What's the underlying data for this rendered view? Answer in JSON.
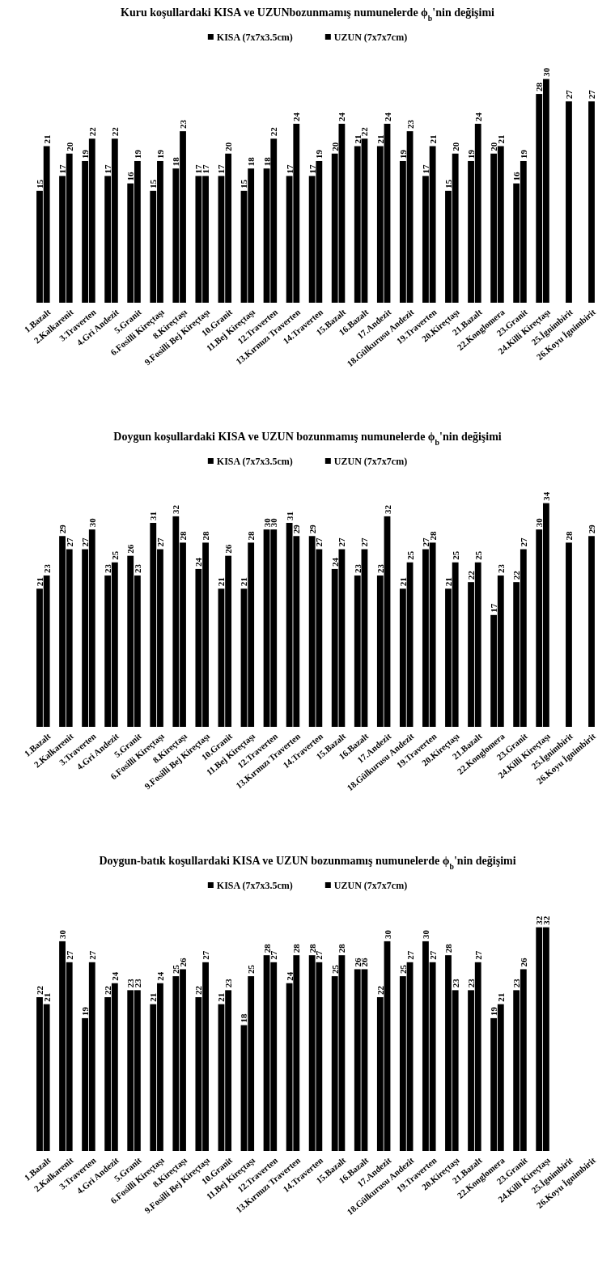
{
  "chart_data": [
    {
      "type": "bar",
      "title": "Kuru koşullardaki KISA ve UZUNbozunmamış numunelerde ϕ$_{b}$'nin değişimi",
      "categories": [
        "1.Bazalt",
        "2.Kalkarenit",
        "3.Traverten",
        "4.Gri Andezit",
        "5.Granit",
        "6.Fosilli Kireçtaşı",
        "8.Kireçtaşı",
        "9.Fosilli Bej Kireçtaşı",
        "10.Granit",
        "11.Bej Kireçtaşı",
        "12.Traverten",
        "13.Kırmızı Traverten",
        "14.Traverten",
        "15.Bazalt",
        "16.Bazalt",
        "17.Andezit",
        "18.Gülkurusu Andezit",
        "19.Traverten",
        "20.Kireçtaşı",
        "21.Bazalt",
        "22.Konglomera",
        "23.Granit",
        "24.Killi Kireçtaşı",
        "25.İgnimbirit",
        "26.Koyu İgnimbirit"
      ],
      "series": [
        {
          "name": "KISA (7x7x3.5cm)",
          "color": "#000000",
          "values": [
            15,
            17,
            19,
            17,
            16,
            15,
            18,
            17,
            17,
            15,
            18,
            17,
            17,
            20,
            21,
            21,
            19,
            17,
            15,
            19,
            20,
            16,
            28,
            null,
            null
          ]
        },
        {
          "name": "UZUN (7x7x7cm)",
          "color": "#000000",
          "values": [
            21,
            20,
            22,
            22,
            19,
            19,
            23,
            17,
            20,
            18,
            22,
            24,
            19,
            24,
            22,
            24,
            23,
            21,
            20,
            24,
            21,
            19,
            30,
            27,
            27
          ]
        }
      ],
      "tick_labels": "x",
      "data_labels": true,
      "legend": "top"
    },
    {
      "type": "bar",
      "title": "Doygun koşullardaki KISA ve UZUN bozunmamış numunelerde ϕ$_{b}$'nin değişimi",
      "categories": [
        "1.Bazalt",
        "2.Kalkarenit",
        "3.Traverten",
        "4.Gri Andezit",
        "5.Granit",
        "6.Fosilli Kireçtaşı",
        "8.Kireçtaşı",
        "9.Fosilli Bej Kireçtaşı",
        "10.Granit",
        "11.Bej Kireçtaşı",
        "12.Traverten",
        "13.Kırmızı Traverten",
        "14.Traverten",
        "15.Bazalt",
        "16.Bazalt",
        "17.Andezit",
        "18.Gülkurusu Andezit",
        "19.Traverten",
        "20.Kireçtaşı",
        "21.Bazalt",
        "22.Konglomera",
        "23.Granit",
        "24.Killi Kireçtaşı",
        "25.İgnimbirit",
        "26.Koyu İgnimbirit"
      ],
      "series": [
        {
          "name": "KISA (7x7x3.5cm)",
          "color": "#000000",
          "values": [
            21,
            29,
            27,
            23,
            26,
            31,
            32,
            24,
            21,
            21,
            30,
            31,
            29,
            24,
            23,
            23,
            21,
            27,
            21,
            22,
            17,
            22,
            30,
            null,
            null
          ]
        },
        {
          "name": "UZUN (7x7x7cm)",
          "color": "#000000",
          "values": [
            23,
            27,
            30,
            25,
            23,
            27,
            28,
            28,
            26,
            28,
            30,
            29,
            27,
            27,
            27,
            32,
            25,
            28,
            25,
            25,
            23,
            27,
            34,
            28,
            29
          ]
        }
      ],
      "tick_labels": "x",
      "data_labels": true,
      "legend": "top"
    },
    {
      "type": "bar",
      "title": "Doygun-batık koşullardaki KISA ve UZUN bozunmamış numunelerde ϕ$_{b}$'nin değişimi",
      "categories": [
        "1.Bazalt",
        "2.Kalkarenit",
        "3.Traverten",
        "4.Gri Andezit",
        "5.Granit",
        "6.Fosilli Kireçtaşı",
        "8.Kireçtaşı",
        "9.Fosilli Bej Kireçtaşı",
        "10.Granit",
        "11.Bej Kireçtaşı",
        "12.Traverten",
        "13.Kırmızı Traverten",
        "14.Traverten",
        "15.Bazalt",
        "16.Bazalt",
        "17.Andezit",
        "18.Gülkurusu Andezit",
        "19.Traverten",
        "20.Kireçtaşı",
        "21.Bazalt",
        "22.Konglomera",
        "23.Granit",
        "24.Killi Kireçtaşı",
        "25.İgnimbirit",
        "26.Koyu İgnimbirit"
      ],
      "series": [
        {
          "name": "KISA (7x7x3.5cm)",
          "color": "#000000",
          "values": [
            22,
            30,
            19,
            22,
            23,
            21,
            25,
            22,
            21,
            18,
            28,
            24,
            28,
            25,
            26,
            22,
            25,
            30,
            28,
            23,
            19,
            23,
            32,
            null,
            null
          ]
        },
        {
          "name": "UZUN (7x7x7cm)",
          "color": "#000000",
          "values": [
            21,
            27,
            27,
            24,
            23,
            24,
            26,
            27,
            23,
            25,
            27,
            28,
            27,
            28,
            26,
            30,
            27,
            27,
            23,
            27,
            21,
            26,
            32,
            null,
            null
          ]
        }
      ],
      "tick_labels": "x",
      "data_labels": true,
      "legend": "top"
    }
  ]
}
